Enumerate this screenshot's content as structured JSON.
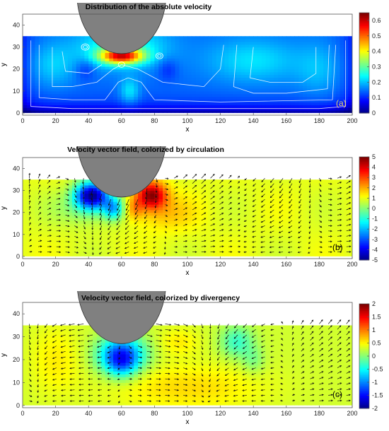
{
  "figure": {
    "colormap": [
      "#00007f",
      "#0000ff",
      "#007fff",
      "#00ffff",
      "#7fff7f",
      "#ffff00",
      "#ff7f00",
      "#ff0000",
      "#7f0000"
    ],
    "obstacle_color": "#808080",
    "streamline_color": "#ffffff"
  },
  "chart_data": [
    {
      "type": "heatmap",
      "title": "Distribution of the absolute velocity",
      "xlabel": "x",
      "ylabel": "y",
      "panel_label": "(a)",
      "panel_label_color": "#e6d46a",
      "xlim": [
        0,
        200
      ],
      "ylim": [
        -1,
        45
      ],
      "xticks": [
        "0",
        "20",
        "40",
        "60",
        "80",
        "100",
        "120",
        "140",
        "160",
        "180",
        "200"
      ],
      "yticks": [
        "0",
        "10",
        "20",
        "30",
        "40"
      ],
      "clim": [
        0,
        0.65
      ],
      "colorbar_ticks": [
        "0.6",
        "0.5",
        "0.4",
        "0.3",
        "0.2",
        "0.1",
        "0"
      ],
      "field": "absolute velocity",
      "fluid_depth": 35,
      "obstacle": {
        "center_x": 60,
        "bottom_y": 27,
        "radius": 27
      },
      "overlay": "streamlines"
    },
    {
      "type": "heatmap",
      "title": "Velocity vector field, colorized by circulation",
      "xlabel": "x",
      "ylabel": "y",
      "panel_label": "(b)",
      "panel_label_color": "#000000",
      "xlim": [
        0,
        200
      ],
      "ylim": [
        -1,
        45
      ],
      "xticks": [
        "0",
        "20",
        "40",
        "60",
        "80",
        "100",
        "120",
        "140",
        "160",
        "180",
        "200"
      ],
      "yticks": [
        "0",
        "10",
        "20",
        "30",
        "40"
      ],
      "clim": [
        -5,
        5
      ],
      "colorbar_ticks": [
        "5",
        "4",
        "3",
        "2",
        "1",
        "0",
        "-1",
        "-2",
        "-3",
        "-4",
        "-5"
      ],
      "field": "circulation",
      "fluid_depth": 35,
      "obstacle": {
        "center_x": 60,
        "bottom_y": 27,
        "radius": 27
      },
      "overlay": "vectors"
    },
    {
      "type": "heatmap",
      "title": "Velocity vector field, colorized by divergency",
      "xlabel": "x",
      "ylabel": "y",
      "panel_label": "(c)",
      "panel_label_color": "#000000",
      "xlim": [
        0,
        200
      ],
      "ylim": [
        -1,
        45
      ],
      "xticks": [
        "0",
        "20",
        "40",
        "60",
        "80",
        "100",
        "120",
        "140",
        "160",
        "180",
        "200"
      ],
      "yticks": [
        "0",
        "10",
        "20",
        "30",
        "40"
      ],
      "clim": [
        -2,
        2
      ],
      "colorbar_ticks": [
        "2",
        "1.5",
        "1",
        "0.5",
        "0",
        "-0.5",
        "-1",
        "-1.5",
        "-2"
      ],
      "field": "divergency",
      "fluid_depth": 35,
      "obstacle": {
        "center_x": 60,
        "bottom_y": 27,
        "radius": 27
      },
      "overlay": "vectors"
    }
  ]
}
